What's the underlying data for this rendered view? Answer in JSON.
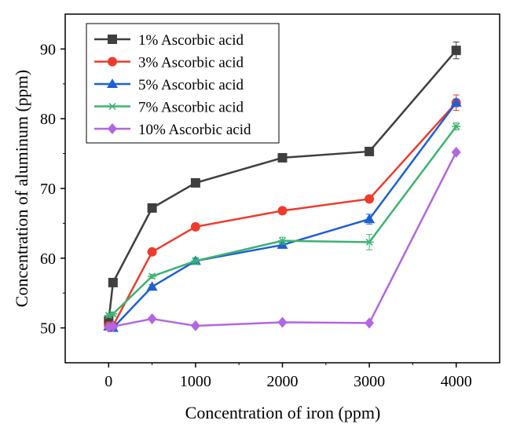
{
  "chart_data": {
    "type": "line",
    "title": "",
    "xlabel": "Concentration of iron (ppm)",
    "ylabel": "Concentration of aluminum (ppm)",
    "xlim": [
      -500,
      4500
    ],
    "ylim": [
      45,
      95
    ],
    "xticks": [
      0,
      1000,
      2000,
      3000,
      4000
    ],
    "yticks": [
      50,
      60,
      70,
      80,
      90
    ],
    "x": [
      0,
      50,
      500,
      1000,
      2000,
      3000,
      4000
    ],
    "legend_position": "top-left",
    "series": [
      {
        "name": "1%  Ascorbic acid",
        "marker": "square",
        "color": "#3f3f3f",
        "values": [
          51.0,
          56.5,
          67.2,
          70.8,
          74.4,
          75.3,
          89.8
        ],
        "errors": [
          0.3,
          0.3,
          0.3,
          0.3,
          0.3,
          0.3,
          1.2
        ]
      },
      {
        "name": "3%  Ascorbic acid",
        "marker": "circle",
        "color": "#ef3b2c",
        "values": [
          50.3,
          50.3,
          60.9,
          64.5,
          66.8,
          68.5,
          82.3
        ],
        "errors": [
          0.3,
          0.3,
          0.3,
          0.3,
          0.3,
          0.3,
          1.1
        ]
      },
      {
        "name": "5%  Ascorbic acid",
        "marker": "triangle",
        "color": "#1f5fd4",
        "values": [
          50.2,
          50.0,
          55.9,
          59.6,
          61.9,
          65.6,
          82.3
        ],
        "errors": [
          0.3,
          0.3,
          0.3,
          0.3,
          0.3,
          0.7,
          0.5
        ]
      },
      {
        "name": "7%  Ascorbic acid",
        "marker": "star",
        "color": "#3cb371",
        "values": [
          51.8,
          52.0,
          57.4,
          59.6,
          62.5,
          62.3,
          78.9
        ],
        "errors": [
          0.3,
          0.3,
          0.3,
          0.5,
          0.5,
          1.1,
          0.5
        ]
      },
      {
        "name": "10% Ascorbic acid",
        "marker": "diamond",
        "color": "#b266e0",
        "values": [
          50.1,
          50.2,
          51.3,
          50.3,
          50.8,
          50.7,
          75.2
        ],
        "errors": [
          0.2,
          0.2,
          0.2,
          0.2,
          0.2,
          0.2,
          0.2
        ]
      }
    ]
  }
}
